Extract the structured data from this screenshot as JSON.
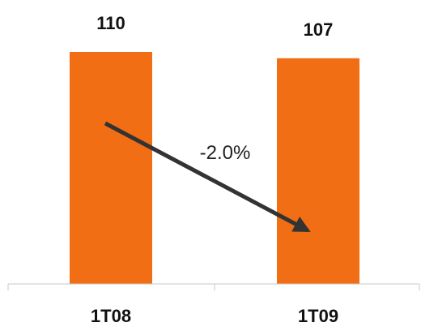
{
  "chart_data": {
    "type": "bar",
    "categories": [
      "1T08",
      "1T09"
    ],
    "values": [
      110,
      107
    ],
    "data_labels": [
      "110",
      "107"
    ],
    "annotation": "-2.0%",
    "title": "",
    "xlabel": "",
    "ylabel": "",
    "grid": false,
    "legend": "none",
    "bar_color": "#F26E14",
    "arrow_color": "#333333"
  }
}
